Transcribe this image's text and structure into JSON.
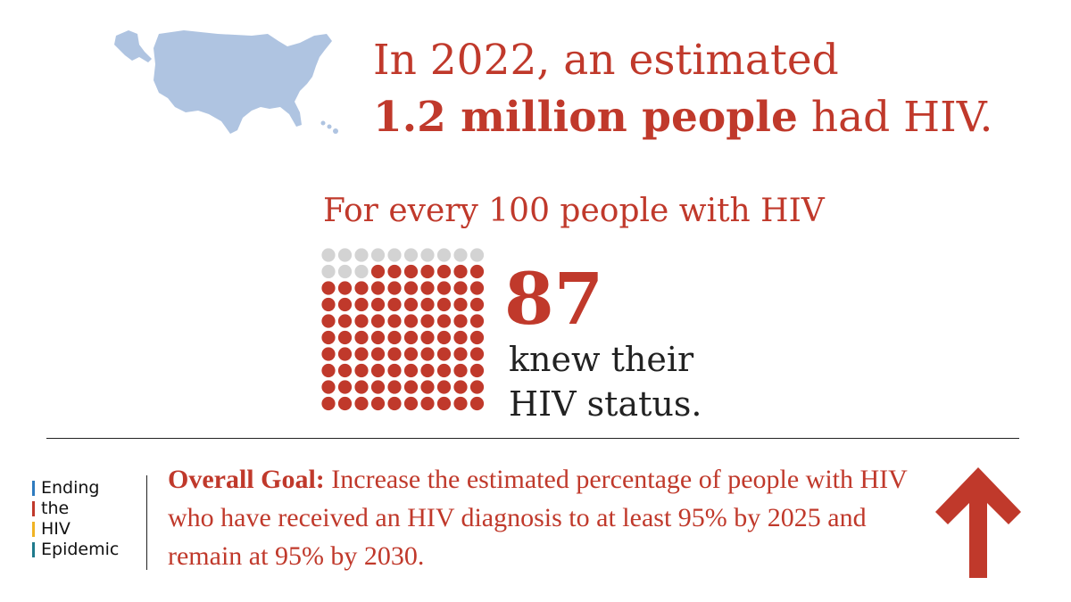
{
  "headline": {
    "line1": "In 2022, an estimated",
    "bold_part": "1.2 million people",
    "rest": " had HIV."
  },
  "subheading": "For every 100 people with HIV",
  "dot_chart": {
    "total": 100,
    "highlighted": 87,
    "highlight_color": "#c0392b",
    "muted_color": "#d3d3d3"
  },
  "stat": {
    "number": "87",
    "line1": "knew their",
    "line2": "HIV status."
  },
  "branding": {
    "lines": [
      {
        "text": "Ending",
        "color": "#2e7bbf"
      },
      {
        "text": "the",
        "color": "#c0392b"
      },
      {
        "text": "HIV",
        "color": "#f0b323"
      },
      {
        "text": "Epidemic",
        "color": "#1f7a8c"
      }
    ]
  },
  "goal": {
    "label": "Overall Goal:",
    "text": " Increase the estimated percentage of people with HIV who have received an HIV diagnosis to at least 95% by 2025 and remain at 95% by 2030."
  },
  "colors": {
    "accent": "#c0392b",
    "map": "#afc4e1"
  },
  "icons": {
    "map": "us-map-icon",
    "arrow": "up-arrow-icon"
  }
}
